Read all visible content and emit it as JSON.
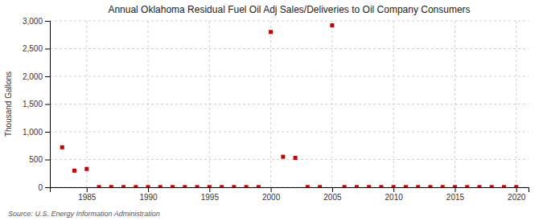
{
  "chart_data": {
    "type": "scatter",
    "title": "Annual Oklahoma Residual Fuel Oil Adj Sales/Deliveries to Oil Company Consumers",
    "ylabel": "Thousand Gallons",
    "annotation": "Source: U.S. Energy Information Administration",
    "color": "#cc0000",
    "marker": "square",
    "grid": true,
    "xlim": [
      1982,
      2021
    ],
    "xticks": [
      1985,
      1990,
      1995,
      2000,
      2005,
      2010,
      2015,
      2020
    ],
    "ylim": [
      0,
      3000
    ],
    "yticks": [
      0,
      500,
      {
        "value": 1000,
        "label": "1,000"
      },
      {
        "value": 1500,
        "label": "1,500"
      },
      {
        "value": 2000,
        "label": "2,000"
      },
      {
        "value": 2500,
        "label": "2,500"
      },
      {
        "value": 3000,
        "label": "3,000"
      }
    ],
    "x": [
      1983,
      1984,
      1985,
      1986,
      1987,
      1988,
      1989,
      1990,
      1991,
      1992,
      1993,
      1994,
      1995,
      1996,
      1997,
      1998,
      1999,
      2000,
      2001,
      2002,
      2003,
      2004,
      2005,
      2006,
      2007,
      2008,
      2009,
      2010,
      2011,
      2012,
      2013,
      2014,
      2015,
      2016,
      2017,
      2018,
      2019,
      2020
    ],
    "values": [
      720,
      300,
      330,
      3,
      3,
      3,
      3,
      3,
      3,
      3,
      3,
      3,
      3,
      3,
      3,
      3,
      3,
      2800,
      550,
      530,
      3,
      3,
      2920,
      3,
      3,
      3,
      3,
      3,
      3,
      3,
      3,
      3,
      3,
      3,
      3,
      3,
      3,
      3
    ]
  }
}
